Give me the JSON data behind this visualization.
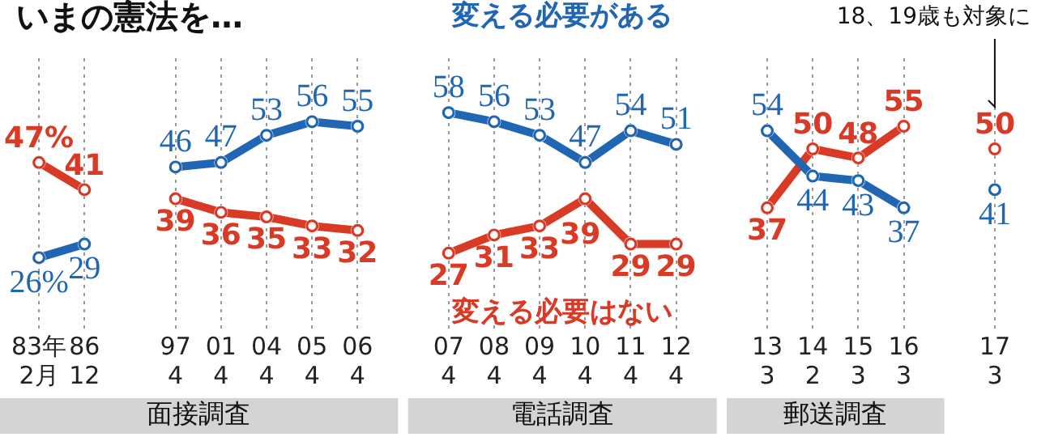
{
  "chart_data": {
    "type": "line",
    "title": "いまの憲法を…",
    "categories": [
      "83年\n2月",
      "86\n12",
      null,
      "97\n4",
      "01\n4",
      "04\n4",
      "05\n4",
      "06\n4",
      null,
      "07\n4",
      "08\n4",
      "09\n4",
      "10\n4",
      "11\n4",
      "12\n4",
      null,
      "13\n3",
      "14\n2",
      "15\n3",
      "16\n3",
      null,
      "17\n3"
    ],
    "series": [
      {
        "name": "変える必要がある",
        "color": "#2166b3",
        "values": [
          26,
          29,
          null,
          46,
          47,
          53,
          56,
          55,
          null,
          58,
          56,
          53,
          47,
          54,
          51,
          null,
          54,
          44,
          43,
          37,
          null,
          41
        ],
        "value_labels": [
          "26%",
          "29",
          null,
          "46",
          "47",
          "53",
          "56",
          "55",
          null,
          "58",
          "56",
          "53",
          "47",
          "54",
          "51",
          null,
          "54",
          "44",
          "43",
          "37",
          null,
          "41"
        ]
      },
      {
        "name": "変える必要はない",
        "color": "#d93a26",
        "values": [
          47,
          41,
          null,
          39,
          36,
          35,
          33,
          32,
          null,
          27,
          31,
          33,
          39,
          29,
          29,
          null,
          37,
          50,
          48,
          55,
          null,
          50
        ],
        "value_labels": [
          "47%",
          "41",
          null,
          "39",
          "36",
          "35",
          "33",
          "32",
          null,
          "27",
          "31",
          "33",
          "39",
          "29",
          "29",
          null,
          "37",
          "50",
          "48",
          "55",
          null,
          "50"
        ]
      }
    ],
    "annotations": [
      "面接調査",
      "電話調査",
      "郵送調査",
      "18、19歳も対象に"
    ],
    "grid": "x",
    "legend": false,
    "tick_labels": "x",
    "marker": "circle",
    "line_style": "solid"
  }
}
